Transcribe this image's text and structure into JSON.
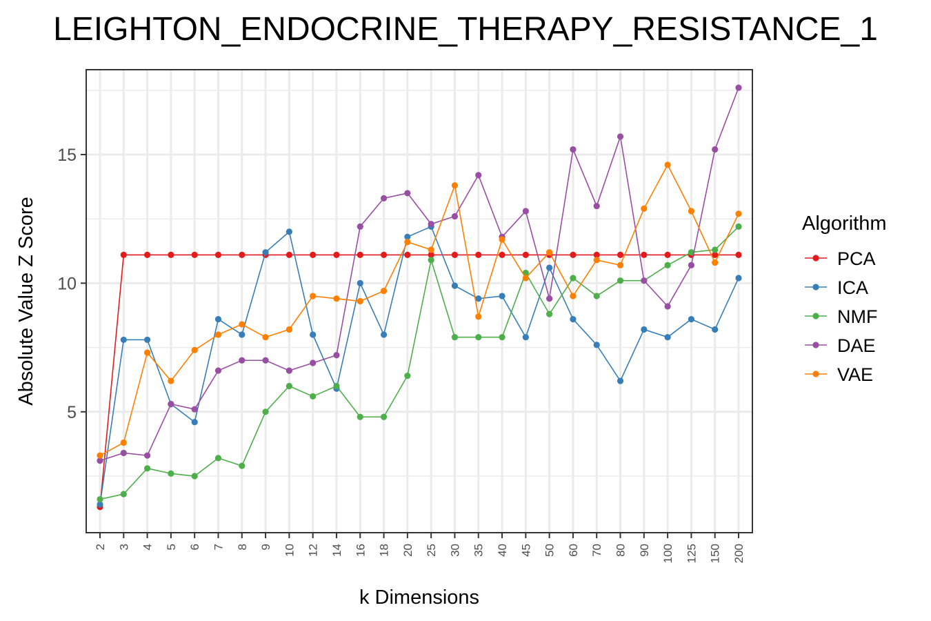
{
  "chart_data": {
    "type": "line",
    "title": "LEIGHTON_ENDOCRINE_THERAPY_RESISTANCE_1",
    "xlabel": "k Dimensions",
    "ylabel": "Absolute Value Z Score",
    "categories": [
      "2",
      "3",
      "4",
      "5",
      "6",
      "7",
      "8",
      "9",
      "10",
      "12",
      "14",
      "16",
      "18",
      "20",
      "25",
      "30",
      "35",
      "40",
      "45",
      "50",
      "60",
      "70",
      "80",
      "90",
      "100",
      "125",
      "150",
      "200"
    ],
    "ylim": [
      0.3,
      18.3
    ],
    "yticks": [
      5,
      10,
      15
    ],
    "ytick_labels": [
      "5",
      "10",
      "15"
    ],
    "grid": true,
    "legend": {
      "title": "Algorithm",
      "placement": "right"
    },
    "series": [
      {
        "name": "PCA",
        "color": "#e41a1c",
        "values": [
          1.3,
          11.1,
          11.1,
          11.1,
          11.1,
          11.1,
          11.1,
          11.1,
          11.1,
          11.1,
          11.1,
          11.1,
          11.1,
          11.1,
          11.1,
          11.1,
          11.1,
          11.1,
          11.1,
          11.1,
          11.1,
          11.1,
          11.1,
          11.1,
          11.1,
          11.1,
          11.1,
          11.1
        ]
      },
      {
        "name": "ICA",
        "color": "#377eb8",
        "values": [
          1.4,
          7.8,
          7.8,
          5.3,
          4.6,
          8.6,
          8.0,
          11.2,
          12.0,
          8.0,
          5.9,
          10.0,
          8.0,
          11.8,
          12.2,
          9.9,
          9.4,
          9.5,
          7.9,
          10.6,
          8.6,
          7.6,
          6.2,
          8.2,
          7.9,
          8.6,
          8.2,
          10.2
        ]
      },
      {
        "name": "NMF",
        "color": "#4daf4a",
        "values": [
          1.6,
          1.8,
          2.8,
          2.6,
          2.5,
          3.2,
          2.9,
          5.0,
          6.0,
          5.6,
          6.0,
          4.8,
          4.8,
          6.4,
          10.9,
          7.9,
          7.9,
          7.9,
          10.4,
          8.8,
          10.2,
          9.5,
          10.1,
          10.1,
          10.7,
          11.2,
          11.3,
          12.2
        ]
      },
      {
        "name": "DAE",
        "color": "#984ea3",
        "values": [
          3.1,
          3.4,
          3.3,
          5.3,
          5.1,
          6.6,
          7.0,
          7.0,
          6.6,
          6.9,
          7.2,
          12.2,
          13.3,
          13.5,
          12.3,
          12.6,
          14.2,
          11.8,
          12.8,
          9.4,
          15.2,
          13.0,
          15.7,
          10.1,
          9.1,
          10.7,
          15.2,
          17.6
        ]
      },
      {
        "name": "VAE",
        "color": "#ff7f00",
        "values": [
          3.3,
          3.8,
          7.3,
          6.2,
          7.4,
          8.0,
          8.4,
          7.9,
          8.2,
          9.5,
          9.4,
          9.3,
          9.7,
          11.6,
          11.3,
          13.8,
          8.7,
          11.7,
          10.2,
          11.2,
          9.5,
          10.9,
          10.7,
          12.9,
          14.6,
          12.8,
          10.8,
          12.7
        ]
      }
    ]
  }
}
